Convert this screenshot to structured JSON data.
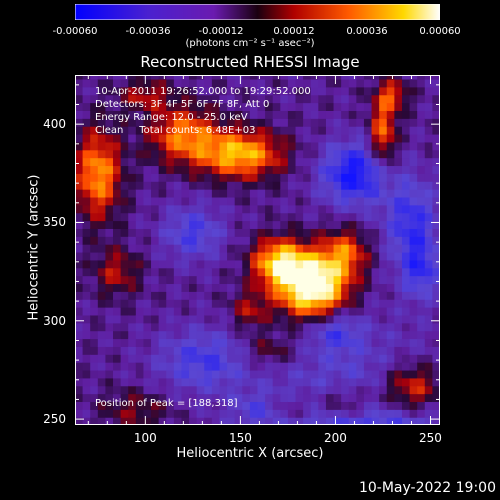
{
  "colorbar": {
    "ticks": [
      "-0.00060",
      "-0.00036",
      "-0.00012",
      "0.00012",
      "0.00036",
      "0.00060"
    ],
    "units": "(photons cm⁻² s⁻¹ asec⁻²)"
  },
  "title": "Reconstructed RHESSI Image",
  "info": {
    "line1": "10-Apr-2011 19:26:52.000 to 19:29:52.000",
    "line2": "Detectors: 3F 4F 5F 6F 7F 8F, Att 0",
    "line3": "Energy Range: 12.0 - 25.0 keV",
    "line4": "Clean     Total counts: 6.48E+03",
    "peak": "Position of Peak = [188,318]"
  },
  "footer_date": "10-May-2022 19:00",
  "chart_data": {
    "type": "heatmap",
    "title": "Reconstructed RHESSI Image",
    "xlabel": "Heliocentric X (arcsec)",
    "ylabel": "Heliocentric Y (arcsec)",
    "xlim": [
      63,
      255
    ],
    "ylim": [
      247,
      425
    ],
    "x_ticks": [
      100,
      150,
      200,
      250
    ],
    "y_ticks": [
      250,
      300,
      350,
      400
    ],
    "colorbar_range": [
      -0.0006,
      0.0006
    ],
    "colormap": [
      "#0000ff",
      "#6a1bb0",
      "#2a0a3a",
      "#b00000",
      "#ff5a00",
      "#ffd800",
      "#ffffff"
    ],
    "peak": [
      188,
      318
    ],
    "grid": false
  }
}
